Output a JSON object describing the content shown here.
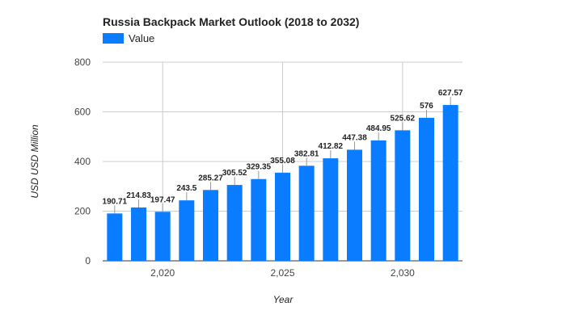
{
  "chart_data": {
    "type": "bar",
    "title": "Russia Backpack Market Outlook (2018 to 2032)",
    "xlabel": "Year",
    "ylabel": "USD USD Million",
    "legend": {
      "position": "top-left",
      "entries": [
        "Value"
      ]
    },
    "x": [
      2018,
      2019,
      2020,
      2021,
      2022,
      2023,
      2024,
      2025,
      2026,
      2027,
      2028,
      2029,
      2030,
      2031,
      2032
    ],
    "series": [
      {
        "name": "Value",
        "color": "#0a7cff",
        "values": [
          190.71,
          214.83,
          197.47,
          243.5,
          285.27,
          305.52,
          329.35,
          355.08,
          382.81,
          412.82,
          447.38,
          484.95,
          525.62,
          576,
          627.57
        ]
      }
    ],
    "data_labels": [
      "190.71",
      "214.83",
      "197.47",
      "243.5",
      "285.27",
      "305.52",
      "329.35",
      "355.08",
      "382.81",
      "412.82",
      "447.38",
      "484.95",
      "525.62",
      "576",
      "627.57"
    ],
    "ylim": [
      0,
      800
    ],
    "yticks": [
      0,
      200,
      400,
      600,
      800
    ],
    "ytick_labels": [
      "0",
      "200",
      "400",
      "600",
      "800"
    ],
    "xticks": [
      2020,
      2025,
      2030
    ],
    "xtick_labels": [
      "2,020",
      "2,025",
      "2,030"
    ],
    "grid": true
  }
}
